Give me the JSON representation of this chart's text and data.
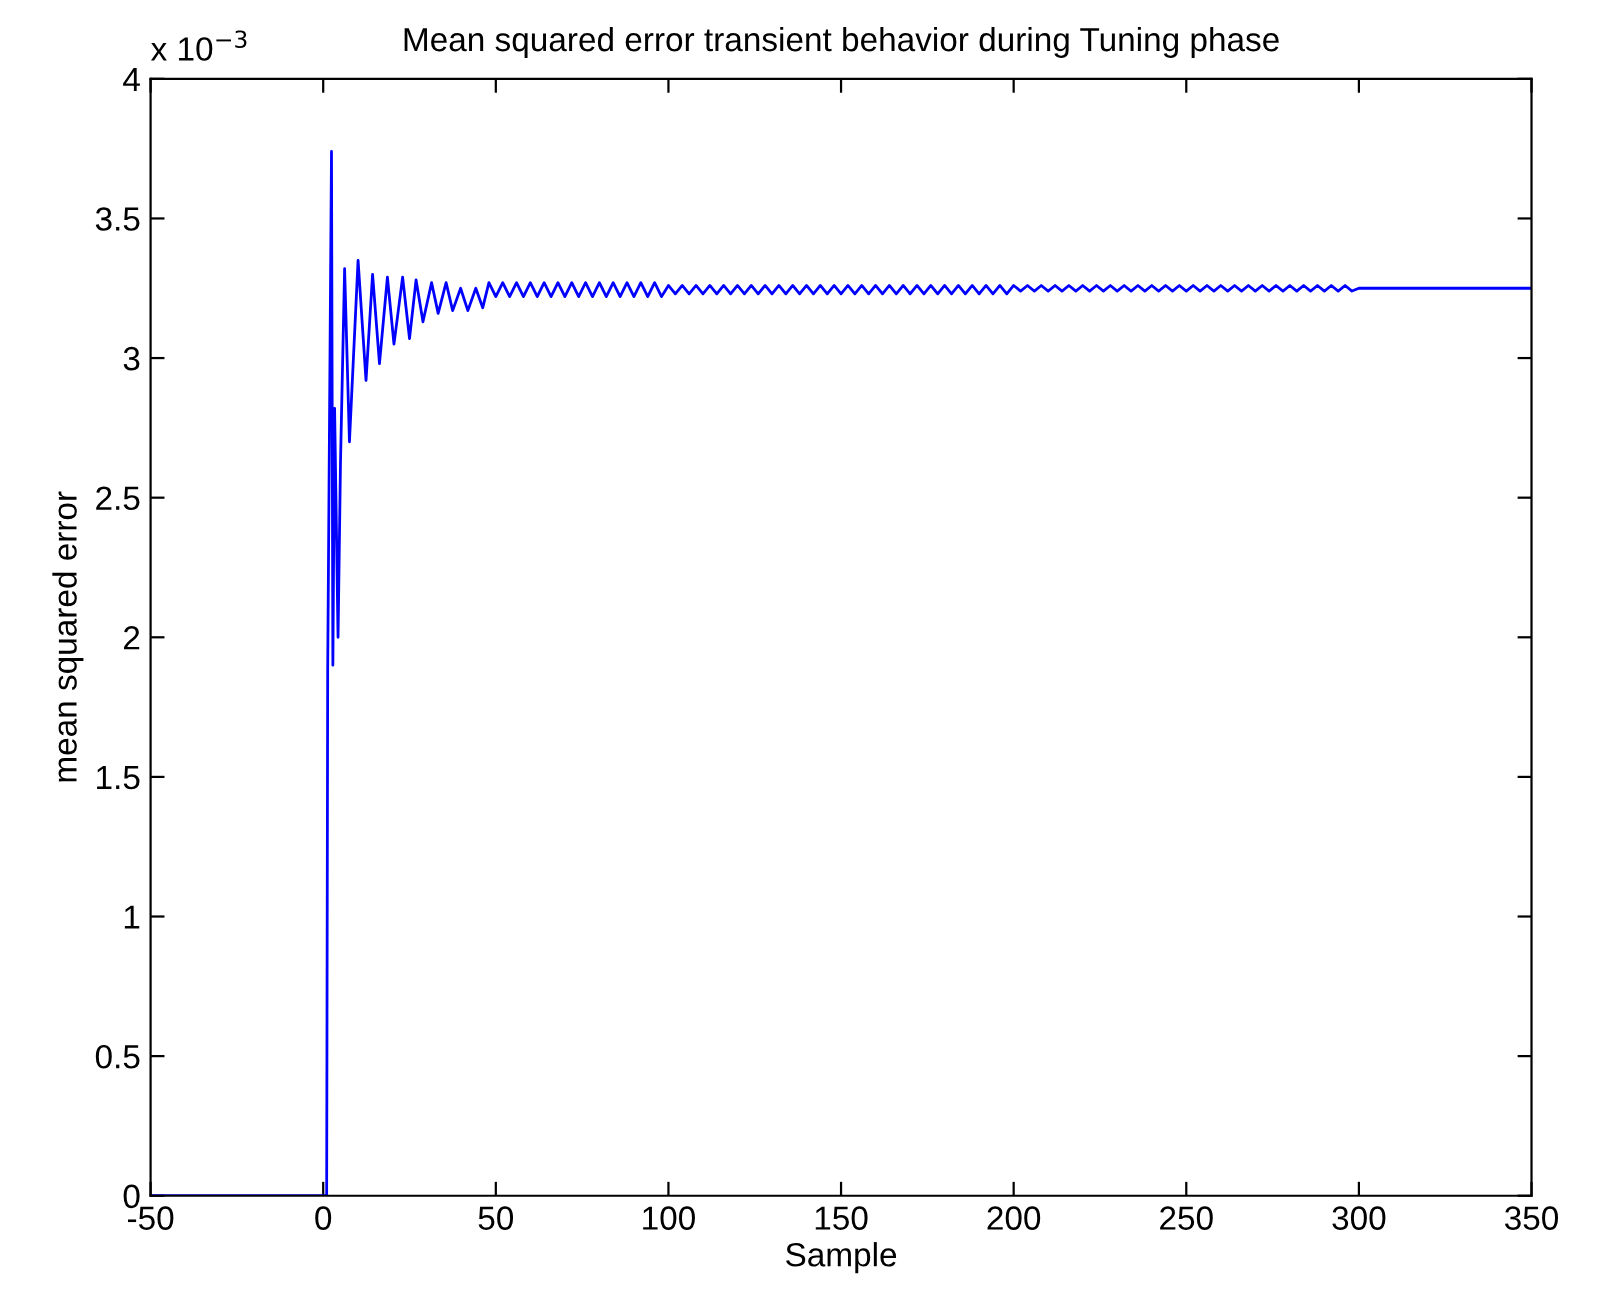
{
  "chart_data": {
    "type": "line",
    "title": "Mean squared error transient behavior during Tuning phase",
    "xlabel": "Sample",
    "ylabel": "mean squared error",
    "annotations": [
      "x 10$^{−3}$"
    ],
    "series": [
      {
        "color": "#0000ff",
        "x": [
          -50,
          1,
          1.3,
          2.4,
          2.8,
          3.3,
          4.3,
          5.0,
          6.2,
          7.6,
          10.1,
          12.4,
          14.3,
          16.3,
          18.6,
          20.5,
          23,
          25,
          26.9,
          28.9,
          31.4,
          33.3,
          35.6,
          37.5,
          39.8,
          41.9,
          44.2,
          46.2,
          48,
          50,
          52,
          54,
          56,
          58,
          60,
          62,
          64,
          66,
          68,
          70,
          72,
          74,
          76,
          78,
          80,
          82,
          84,
          86,
          88,
          90,
          92,
          94,
          96,
          98,
          100,
          102,
          104,
          106,
          108,
          110,
          112,
          114,
          116,
          118,
          120,
          122,
          124,
          126,
          128,
          130,
          132,
          134,
          136,
          138,
          140,
          142,
          144,
          146,
          148,
          150,
          152,
          154,
          156,
          158,
          160,
          162,
          164,
          166,
          168,
          170,
          172,
          174,
          176,
          178,
          180,
          182,
          184,
          186,
          188,
          190,
          192,
          194,
          196,
          198,
          200,
          202,
          204,
          206,
          208,
          210,
          212,
          214,
          216,
          218,
          220,
          222,
          224,
          226,
          228,
          230,
          232,
          234,
          236,
          238,
          240,
          242,
          244,
          246,
          248,
          250,
          252,
          254,
          256,
          258,
          260,
          262,
          264,
          266,
          268,
          270,
          272,
          274,
          276,
          278,
          280,
          282,
          284,
          286,
          288,
          290,
          292,
          294,
          296,
          298,
          300,
          350
        ],
        "values": [
          0,
          0,
          1.88,
          3.74,
          1.9,
          2.82,
          2.0,
          2.62,
          3.32,
          2.7,
          3.35,
          2.92,
          3.3,
          2.98,
          3.29,
          3.05,
          3.29,
          3.07,
          3.28,
          3.13,
          3.27,
          3.16,
          3.27,
          3.17,
          3.25,
          3.17,
          3.25,
          3.18,
          3.27,
          3.22,
          3.27,
          3.22,
          3.27,
          3.22,
          3.27,
          3.22,
          3.27,
          3.22,
          3.27,
          3.22,
          3.27,
          3.22,
          3.27,
          3.22,
          3.27,
          3.22,
          3.27,
          3.22,
          3.27,
          3.22,
          3.27,
          3.22,
          3.27,
          3.22,
          3.26,
          3.23,
          3.26,
          3.23,
          3.26,
          3.23,
          3.26,
          3.23,
          3.26,
          3.23,
          3.26,
          3.23,
          3.26,
          3.23,
          3.26,
          3.23,
          3.26,
          3.23,
          3.26,
          3.23,
          3.26,
          3.23,
          3.26,
          3.23,
          3.26,
          3.23,
          3.26,
          3.23,
          3.26,
          3.23,
          3.26,
          3.23,
          3.26,
          3.23,
          3.26,
          3.23,
          3.26,
          3.23,
          3.26,
          3.23,
          3.26,
          3.23,
          3.26,
          3.23,
          3.26,
          3.23,
          3.26,
          3.23,
          3.26,
          3.23,
          3.26,
          3.24,
          3.26,
          3.24,
          3.26,
          3.24,
          3.26,
          3.24,
          3.26,
          3.24,
          3.26,
          3.24,
          3.26,
          3.24,
          3.26,
          3.24,
          3.26,
          3.24,
          3.26,
          3.24,
          3.26,
          3.24,
          3.26,
          3.24,
          3.26,
          3.24,
          3.26,
          3.24,
          3.26,
          3.24,
          3.26,
          3.24,
          3.26,
          3.24,
          3.26,
          3.24,
          3.26,
          3.24,
          3.26,
          3.24,
          3.26,
          3.24,
          3.26,
          3.24,
          3.26,
          3.24,
          3.26,
          3.24,
          3.26,
          3.24,
          3.25,
          3.25
        ]
      }
    ],
    "xlim": [
      -50,
      350
    ],
    "xticks": [
      -50,
      0,
      50,
      100,
      150,
      200,
      250,
      300,
      350
    ],
    "ylim": [
      0,
      4
    ],
    "yticks": [
      0,
      0.5,
      1,
      1.5,
      2,
      2.5,
      3,
      3.5,
      4
    ],
    "grid": false,
    "legend": false,
    "line_style": "solid",
    "marker": "none"
  }
}
